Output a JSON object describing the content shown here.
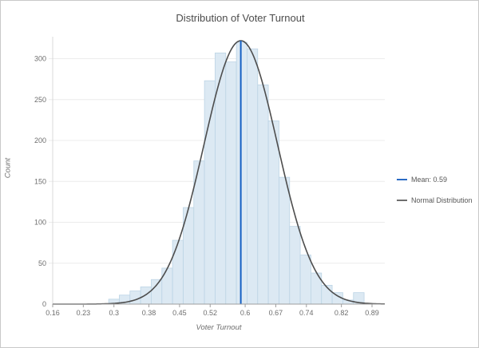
{
  "title": "Distribution of Voter Turnout",
  "legend": {
    "items": [
      {
        "label": "Mean: 0.59",
        "color": "#2a6bc4"
      },
      {
        "label": "Normal Distribution",
        "color": "#6e6e6e"
      }
    ]
  },
  "colors": {
    "bar_fill": "#dce9f3",
    "bar_stroke": "#bcd4e5",
    "curve": "#4d4d4d",
    "mean_line": "#1661c4",
    "gridline": "#ececec",
    "y_axis_line": "#d8d8d8",
    "x_axis_line": "#9e9e9e",
    "tick_label": "#6e6e6e",
    "border": "#c9c9c9"
  },
  "chart_data": {
    "type": "bar",
    "subtype": "histogram-with-normal-fit",
    "title": "Distribution of Voter Turnout",
    "xlabel": "Voter Turnout",
    "ylabel": "Count",
    "x_tick_labels": [
      "0.16",
      "0.23",
      "0.3",
      "0.38",
      "0.45",
      "0.52",
      "0.6",
      "0.67",
      "0.74",
      "0.82",
      "0.89"
    ],
    "x_tick_values": [
      0.16,
      0.23,
      0.3,
      0.38,
      0.45,
      0.52,
      0.6,
      0.67,
      0.74,
      0.82,
      0.89
    ],
    "y_tick_values": [
      0,
      50,
      100,
      150,
      200,
      250,
      300
    ],
    "xlim": [
      0.16,
      0.92
    ],
    "ylim": [
      0,
      327
    ],
    "grid": "horizontal-only",
    "legend_position": "right",
    "bins": {
      "start": 0.288,
      "width": 0.02433,
      "counts": [
        6,
        11,
        16,
        21,
        30,
        44,
        78,
        118,
        175,
        273,
        307,
        296,
        320,
        312,
        268,
        224,
        155,
        95,
        60,
        38,
        23,
        14,
        5,
        14
      ]
    },
    "mean": 0.59,
    "normal_fit": {
      "mu": 0.59,
      "sigma": 0.084,
      "peak_count": 322
    }
  }
}
